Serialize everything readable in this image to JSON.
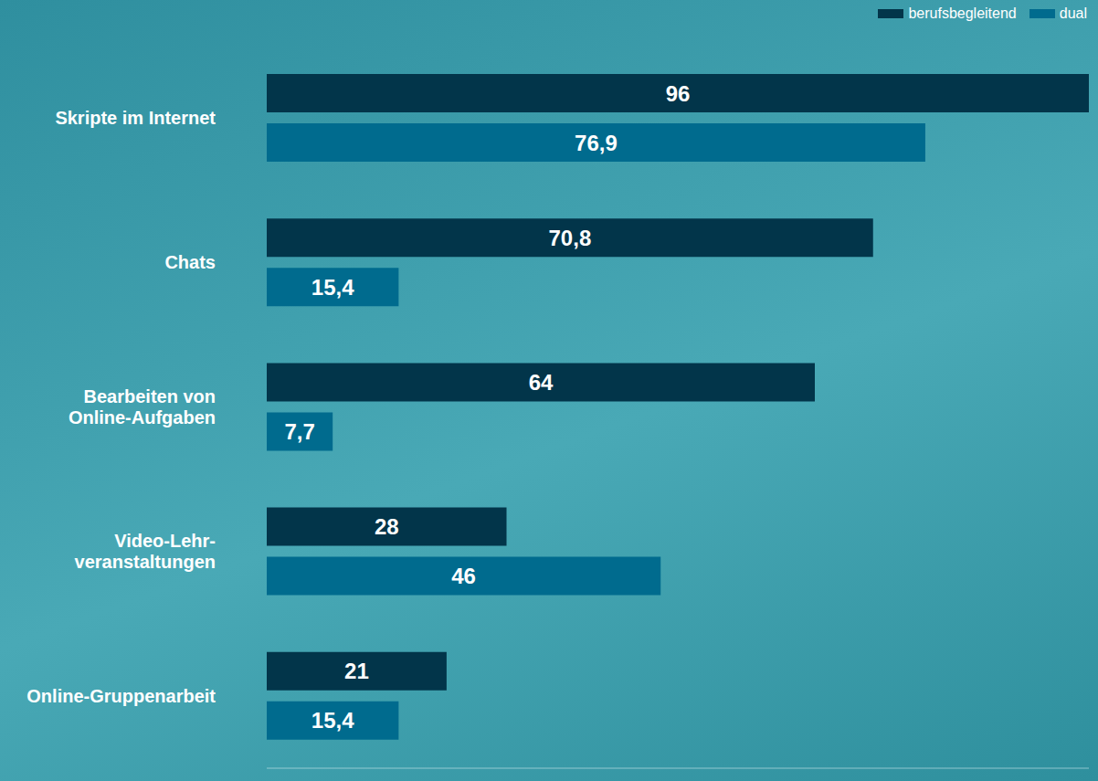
{
  "chart_data": {
    "type": "bar",
    "orientation": "horizontal",
    "categories": [
      "Skripte im Internet",
      "Chats",
      "Bearbeiten von Online-Aufgaben",
      "Video-Lehr-veranstaltungen",
      "Online-Gruppenarbeit"
    ],
    "series": [
      {
        "name": "berufsbegleitend",
        "color": "#02354a",
        "values": [
          96,
          70.8,
          64,
          28,
          21
        ],
        "value_labels": [
          "96",
          "70,8",
          "64",
          "28",
          "21"
        ]
      },
      {
        "name": "dual",
        "color": "#006b8e",
        "values": [
          76.9,
          15.4,
          7.7,
          46,
          15.4
        ],
        "value_labels": [
          "76,9",
          "15,4",
          "7,7",
          "46",
          "15,4"
        ]
      }
    ],
    "xlim": [
      0,
      96
    ],
    "tick_labels": "y",
    "data_labels": true,
    "grid": false,
    "legend": "top-right"
  }
}
